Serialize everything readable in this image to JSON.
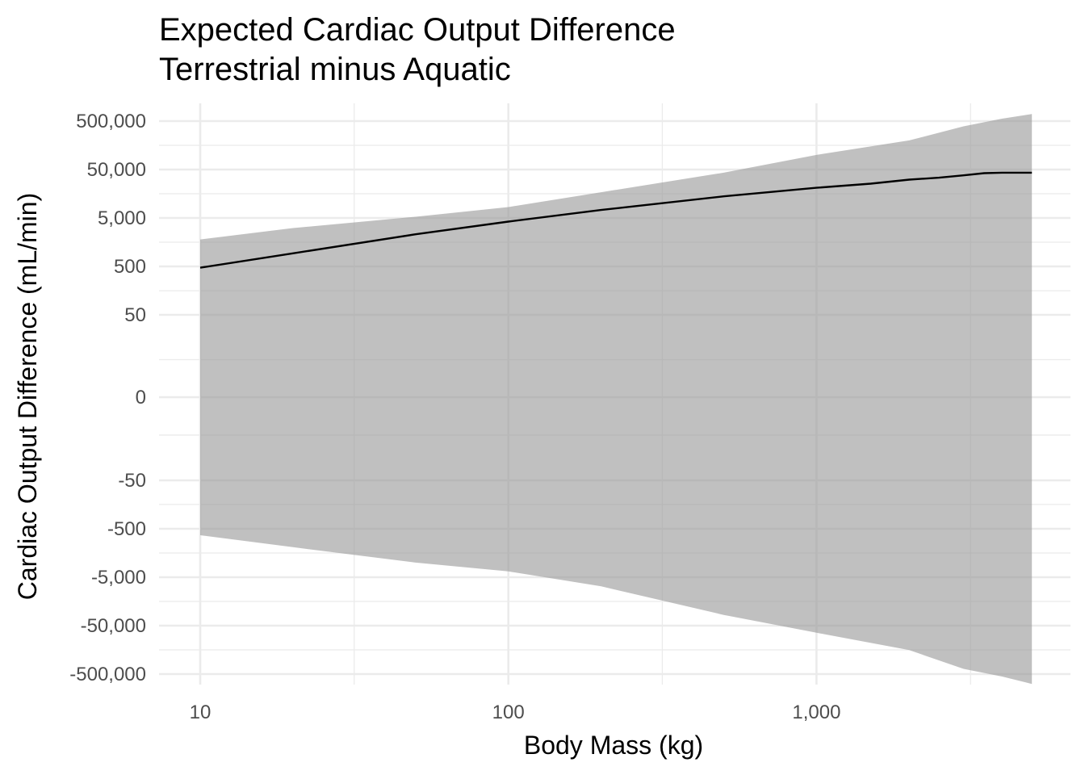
{
  "chart_data": {
    "type": "line",
    "title": "Expected Cardiac Output Difference",
    "subtitle": "Terrestrial minus Aquatic",
    "xlabel": "Body Mass (kg)",
    "ylabel": "Cardiac Output Difference (mL/min)",
    "x_scale": "log10",
    "y_scale": "pseudo-log (symmetric)",
    "x_ticks": [
      10,
      100,
      1000
    ],
    "x_tick_labels": [
      "10",
      "100",
      "1,000"
    ],
    "x_minor_ticks": [
      31.6,
      316,
      3162
    ],
    "xlim": [
      7,
      5500
    ],
    "y_ticks": [
      500000,
      50000,
      5000,
      500,
      50,
      0,
      -50,
      -500,
      -5000,
      -50000,
      -500000
    ],
    "y_tick_labels": [
      "500,000",
      "50,000",
      "5,000",
      "500",
      "50",
      "0",
      "-50",
      "-500",
      "-5,000",
      "-50,000",
      "-500,000"
    ],
    "y_minor_ticks": [
      158000,
      15800,
      1580,
      158,
      5,
      -5,
      -158,
      -1580,
      -15800,
      -158000
    ],
    "ylim": [
      -900000,
      900000
    ],
    "grid": true,
    "legend": "none",
    "series": [
      {
        "x": [
          10,
          20,
          50,
          100,
          200,
          500,
          1000,
          1500,
          2000,
          2500,
          3000,
          3500,
          4000,
          5000
        ],
        "y": [
          470,
          930,
          2300,
          4200,
          7300,
          14000,
          21000,
          25500,
          31000,
          34000,
          38000,
          42000,
          43000,
          43000
        ]
      }
    ],
    "band": {
      "x": [
        10,
        20,
        50,
        100,
        200,
        500,
        1000,
        2000,
        3000,
        4000,
        5000
      ],
      "upper": [
        1800,
        3100,
        5300,
        8400,
        17000,
        43000,
        100000,
        200000,
        390000,
        560000,
        700000
      ],
      "lower": [
        -680,
        -1200,
        -2500,
        -3800,
        -7700,
        -30000,
        -70000,
        -160000,
        -390000,
        -560000,
        -800000
      ]
    }
  }
}
